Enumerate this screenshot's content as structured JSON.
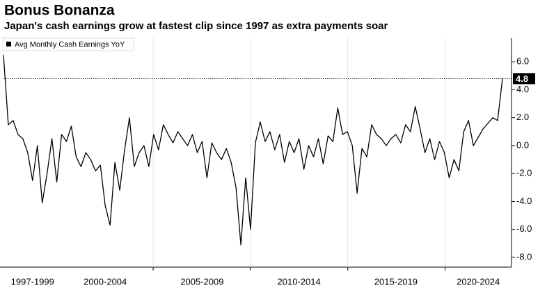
{
  "chart_data": {
    "type": "line",
    "title": "Bonus Bonanza",
    "subtitle": "Japan's cash earnings grow at fastest clip since 1997 as extra payments soar",
    "categories": [
      null,
      null,
      null,
      null,
      null,
      null,
      "1997-1999",
      null,
      null,
      null,
      null,
      null,
      null,
      null,
      null,
      null,
      null,
      null,
      null,
      null,
      null,
      "2000-2004",
      null,
      null,
      null,
      null,
      null,
      null,
      null,
      null,
      null,
      null,
      null,
      null,
      null,
      null,
      null,
      null,
      null,
      null,
      null,
      "2005-2009",
      null,
      null,
      null,
      null,
      null,
      null,
      null,
      null,
      null,
      null,
      null,
      null,
      null,
      null,
      null,
      null,
      null,
      null,
      null,
      "2010-2014",
      null,
      null,
      null,
      null,
      null,
      null,
      null,
      null,
      null,
      null,
      null,
      null,
      null,
      null,
      null,
      null,
      null,
      null,
      null,
      "2015-2019",
      null,
      null,
      null,
      null,
      null,
      null,
      null,
      null,
      null,
      null,
      null,
      null,
      null,
      null,
      null,
      null,
      "2020-2024",
      null,
      null,
      null,
      null,
      null
    ],
    "series": [
      {
        "name": "Avg Monthly Cash Earnings YoY",
        "color": "#000000",
        "values": [
          6.5,
          1.5,
          1.8,
          0.8,
          0.5,
          -0.5,
          -2.5,
          0.0,
          -4.1,
          -2.0,
          0.5,
          -2.6,
          0.8,
          0.3,
          1.4,
          -0.8,
          -1.5,
          -0.5,
          -1.0,
          -1.8,
          -1.4,
          -4.3,
          -5.7,
          -1.2,
          -3.2,
          -0.3,
          2.0,
          -1.5,
          -0.5,
          0.0,
          -1.5,
          0.8,
          -0.3,
          1.5,
          0.8,
          0.2,
          1.0,
          0.5,
          0.0,
          0.8,
          -0.5,
          0.3,
          -2.3,
          0.2,
          -0.5,
          -1.0,
          -0.2,
          -1.2,
          -3.0,
          -7.1,
          -2.3,
          -6.0,
          0.2,
          1.7,
          0.3,
          1.0,
          -0.3,
          0.8,
          -1.2,
          0.3,
          -0.5,
          0.5,
          -1.7,
          0.0,
          -0.8,
          0.5,
          -1.3,
          0.7,
          0.3,
          2.7,
          0.8,
          1.0,
          0.0,
          -3.4,
          -0.2,
          -0.8,
          1.5,
          0.8,
          0.5,
          0.0,
          0.5,
          0.8,
          0.2,
          1.5,
          1.0,
          2.8,
          1.2,
          -0.5,
          0.5,
          -1.0,
          0.3,
          -0.5,
          -2.3,
          -1.0,
          -1.8,
          1.0,
          1.8,
          0.0,
          0.6,
          1.2,
          1.6,
          2.0,
          1.8,
          4.8
        ]
      }
    ],
    "reference_line": 4.8,
    "ylim": [
      -8.7,
      7.7
    ],
    "yticks": [
      {
        "value": -8,
        "label": "-8.0"
      },
      {
        "value": -6,
        "label": "-6.0"
      },
      {
        "value": -4,
        "label": "-4.0"
      },
      {
        "value": -2,
        "label": "-2.0"
      },
      {
        "value": 0,
        "label": "0.0"
      },
      {
        "value": 2,
        "label": "2.0"
      },
      {
        "value": 4,
        "label": "4.0"
      },
      {
        "value": 6,
        "label": "6.0"
      }
    ],
    "axis_side": "right",
    "legend": "top-left"
  }
}
